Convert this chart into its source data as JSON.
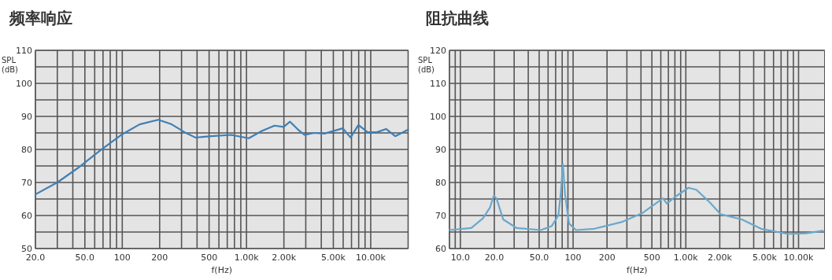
{
  "chart_data": [
    {
      "type": "line",
      "title": "频率响应",
      "xlabel": "f(Hz)",
      "ylabel": "SPL (dB)",
      "log": "x",
      "grid": true,
      "line_style": "solid",
      "marker": "none",
      "x": [
        20,
        30,
        44,
        66,
        98,
        138,
        195,
        250,
        318,
        388,
        522,
        752,
        1044,
        1328,
        1680,
        1990,
        2240,
        2600,
        2940,
        3500,
        4240,
        5960,
        6880,
        7960,
        9460,
        11200,
        13300,
        15740,
        20000
      ],
      "series": [
        {
          "color": "#3f7fb5",
          "values": [
            66.4,
            70.0,
            74.4,
            79.6,
            84.4,
            87.6,
            89.0,
            87.6,
            85.2,
            83.6,
            84.0,
            84.4,
            83.4,
            85.6,
            87.2,
            86.8,
            88.4,
            86.0,
            84.4,
            85.0,
            84.8,
            86.4,
            83.6,
            87.4,
            85.2,
            85.2,
            86.2,
            84.0,
            86.0
          ]
        }
      ],
      "xlim": [
        20,
        20000
      ],
      "ylim": [
        50,
        110
      ],
      "xticks": [
        {
          "value": 20,
          "label": "20.0"
        },
        {
          "value": 30,
          "label": null
        },
        {
          "value": 40,
          "label": null
        },
        {
          "value": 50,
          "label": "50.0"
        },
        {
          "value": 60,
          "label": null
        },
        {
          "value": 70,
          "label": null
        },
        {
          "value": 80,
          "label": null
        },
        {
          "value": 90,
          "label": null
        },
        100,
        200,
        {
          "value": 300,
          "label": null
        },
        {
          "value": 400,
          "label": null
        },
        500,
        {
          "value": 600,
          "label": null
        },
        {
          "value": 700,
          "label": null
        },
        {
          "value": 800,
          "label": null
        },
        {
          "value": 900,
          "label": null
        },
        {
          "value": 1000,
          "label": "1.00k"
        },
        {
          "value": 2000,
          "label": "2.00k"
        },
        {
          "value": 3000,
          "label": null
        },
        {
          "value": 4000,
          "label": null
        },
        {
          "value": 5000,
          "label": "5.00k"
        },
        {
          "value": 6000,
          "label": null
        },
        {
          "value": 7000,
          "label": null
        },
        {
          "value": 8000,
          "label": null
        },
        {
          "value": 9000,
          "label": null
        },
        {
          "value": 10000,
          "label": "10.00k"
        },
        {
          "value": 20000,
          "label": null
        }
      ],
      "yticks": [
        50,
        {
          "value": 55,
          "label": null
        },
        60,
        {
          "value": 65,
          "label": null
        },
        70,
        {
          "value": 75,
          "label": null
        },
        80,
        {
          "value": 85,
          "label": null
        },
        90,
        {
          "value": 95,
          "label": null
        },
        100,
        {
          "value": 105,
          "label": null
        },
        110
      ]
    },
    {
      "type": "line",
      "title": "阻抗曲线",
      "xlabel": "f(Hz)",
      "ylabel": "SPL (dB)",
      "log": "x",
      "grid": true,
      "line_style": "solid",
      "marker": "none",
      "x": [
        8,
        12.5,
        15.9,
        18.3,
        19.8,
        20.9,
        24,
        31.6,
        51.8,
        64.6,
        74,
        78,
        81.2,
        84.8,
        92,
        106,
        155,
        268,
        414,
        627,
        680,
        800,
        1054,
        1240,
        1630,
        2030,
        3140,
        4640,
        8050,
        11700,
        16400
      ],
      "series": [
        {
          "color": "#6aa8cc",
          "values": [
            65.6,
            66.2,
            69.2,
            72.4,
            76.0,
            75.2,
            68.8,
            66.2,
            65.6,
            66.8,
            70.0,
            77.2,
            85.6,
            76.4,
            67.6,
            65.6,
            66.0,
            68.0,
            70.8,
            75.2,
            73.6,
            75.6,
            78.4,
            77.8,
            74.0,
            70.4,
            68.8,
            66.0,
            64.4,
            64.6,
            65.4
          ]
        }
      ],
      "xlim": [
        8,
        17000
      ],
      "ylim": [
        60,
        120
      ],
      "xticks": [
        {
          "value": 8,
          "label": null
        },
        {
          "value": 9,
          "label": null
        },
        {
          "value": 10,
          "label": "10.0"
        },
        {
          "value": 20,
          "label": "20.0"
        },
        {
          "value": 30,
          "label": null
        },
        {
          "value": 40,
          "label": null
        },
        {
          "value": 50,
          "label": "50.0"
        },
        {
          "value": 60,
          "label": null
        },
        {
          "value": 70,
          "label": null
        },
        {
          "value": 80,
          "label": null
        },
        {
          "value": 90,
          "label": null
        },
        100,
        200,
        {
          "value": 300,
          "label": null
        },
        {
          "value": 400,
          "label": null
        },
        500,
        {
          "value": 600,
          "label": null
        },
        {
          "value": 700,
          "label": null
        },
        {
          "value": 800,
          "label": null
        },
        {
          "value": 900,
          "label": null
        },
        {
          "value": 1000,
          "label": "1.00k"
        },
        {
          "value": 2000,
          "label": "2.00k"
        },
        {
          "value": 3000,
          "label": null
        },
        {
          "value": 4000,
          "label": null
        },
        {
          "value": 5000,
          "label": "5.00k"
        },
        {
          "value": 6000,
          "label": null
        },
        {
          "value": 7000,
          "label": null
        },
        {
          "value": 8000,
          "label": null
        },
        {
          "value": 9000,
          "label": null
        },
        {
          "value": 10000,
          "label": "10.00k"
        }
      ],
      "yticks": [
        60,
        {
          "value": 65,
          "label": null
        },
        70,
        {
          "value": 75,
          "label": null
        },
        80,
        {
          "value": 85,
          "label": null
        },
        90,
        {
          "value": 95,
          "label": null
        },
        100,
        {
          "value": 105,
          "label": null
        },
        110,
        {
          "value": 115,
          "label": null
        },
        120
      ]
    }
  ]
}
